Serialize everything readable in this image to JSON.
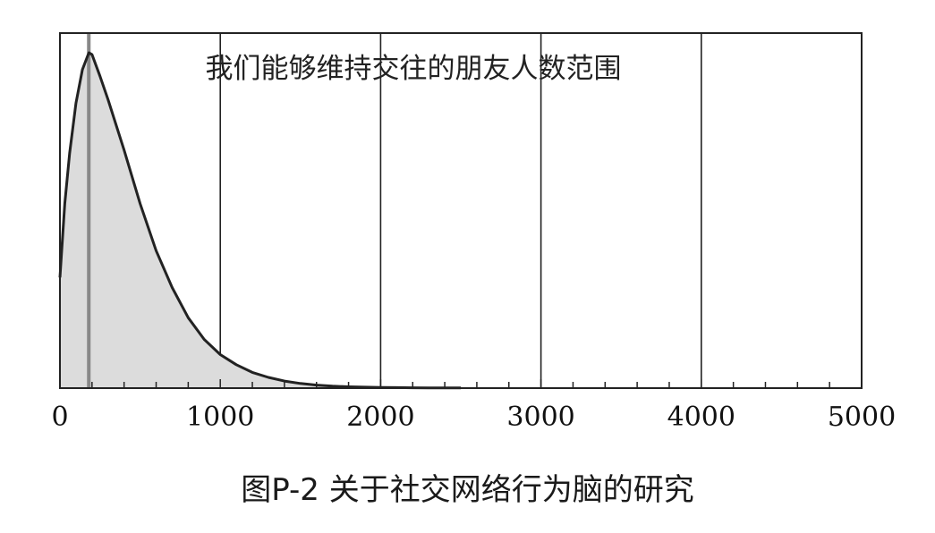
{
  "chart_data": {
    "type": "area",
    "title": "我们能够维持交往的朋友人数范围",
    "xlabel": "",
    "ylabel": "",
    "xlim": [
      0,
      5000
    ],
    "ylim": [
      0,
      1
    ],
    "x_ticks": [
      0,
      1000,
      2000,
      3000,
      4000,
      5000
    ],
    "x_tick_labels": [
      "0",
      "1000",
      "2000",
      "3000",
      "4000",
      "5000"
    ],
    "grid": "vertical",
    "marker_line_x": 180,
    "series": [
      {
        "x": [
          0,
          30,
          60,
          100,
          140,
          180,
          200,
          250,
          300,
          400,
          500,
          600,
          700,
          800,
          900,
          1000,
          1100,
          1200,
          1300,
          1400,
          1500,
          1600,
          1700,
          1800,
          1900,
          2000,
          2100,
          2200,
          2300,
          2400,
          2500
        ],
        "y": [
          0.33,
          0.55,
          0.7,
          0.85,
          0.95,
          1.0,
          0.995,
          0.93,
          0.86,
          0.71,
          0.55,
          0.41,
          0.3,
          0.21,
          0.145,
          0.1,
          0.07,
          0.047,
          0.032,
          0.021,
          0.014,
          0.009,
          0.006,
          0.004,
          0.003,
          0.002,
          0.0015,
          0.001,
          0.0008,
          0.0006,
          0.0005
        ],
        "color": "#222222",
        "fill": "#dcdcdc"
      }
    ],
    "marker_color": "#888888"
  },
  "caption": "图P-2 关于社交网络行为脑的研究"
}
